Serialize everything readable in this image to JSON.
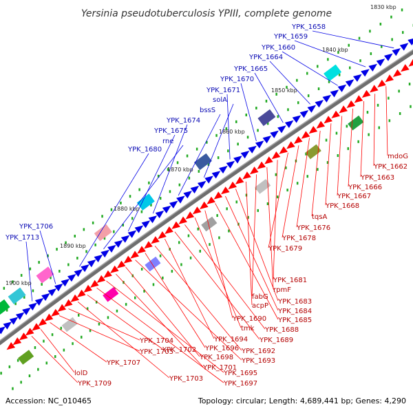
{
  "title": "Yersinia pseudotuberculosis YPIII, complete genome",
  "footer": {
    "accession": "Accession: NC_010465",
    "topology": "Topology: circular; Length: 4,689,441 bp; Genes: 4,290"
  },
  "colors": {
    "backbone": "#6e6e6e",
    "forward_strand": "#0000e6",
    "reverse_strand": "#ff0000",
    "forward_label": "#0a0ab4",
    "reverse_label": "#b40000",
    "tick": "#22aa22"
  },
  "kbp_ticks": [
    "1830 kbp",
    "1840 kbp",
    "1850 kbp",
    "1860 kbp",
    "1870 kbp",
    "1880 kbp",
    "1890 kbp",
    "1900 kbp"
  ],
  "forward_labels": [
    "YPK_1658",
    "YPK_1659",
    "YPK_1660",
    "YPK_1664",
    "YPK_1665",
    "YPK_1670",
    "YPK_1671",
    "solA",
    "bssS",
    "YPK_1674",
    "YPK_1675",
    "rne",
    "YPK_1680",
    "YPK_1706",
    "YPK_1713"
  ],
  "reverse_labels": [
    "mdoG",
    "YPK_1662",
    "YPK_1663",
    "YPK_1666",
    "YPK_1667",
    "YPK_1668",
    "tqsA",
    "YPK_1676",
    "YPK_1678",
    "YPK_1679",
    "YPK_1681",
    "rpmF",
    "fabG",
    "acpP",
    "YPK_1683",
    "YPK_1684",
    "YPK_1685",
    "YPK_1690",
    "tmk",
    "YPK_1688",
    "YPK_1689",
    "YPK_1694",
    "YPK_1692",
    "YPK_1696",
    "YPK_1693",
    "YPK_1698",
    "YPK_1701",
    "YPK_1695",
    "YPK_1697",
    "YPK_1702",
    "YPK_1703",
    "YPK_1704",
    "YPK_1705",
    "YPK_1707",
    "lolD",
    "YPK_1709"
  ]
}
